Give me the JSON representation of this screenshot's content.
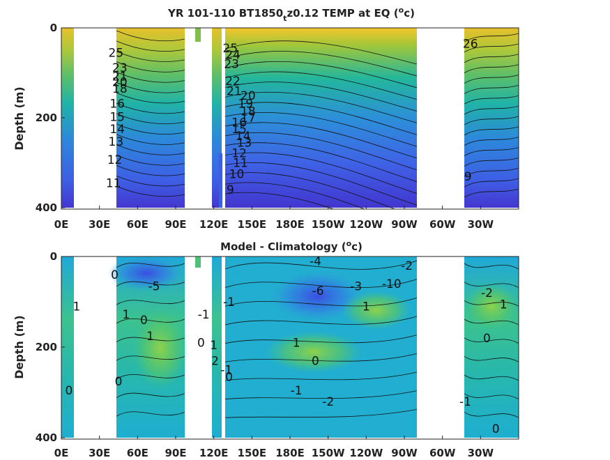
{
  "chart_data": [
    {
      "type": "heatmap",
      "title_main": "YR 101-110 BT1850",
      "title_sub": "t",
      "title_rest": "z0.12 TEMP at EQ (",
      "title_sup": "o",
      "title_end": "c)",
      "ylabel": "Depth (m)",
      "ylim": [
        400,
        0
      ],
      "yticks": [
        "0",
        "200",
        "400"
      ],
      "xticks": [
        "0E",
        "30E",
        "60E",
        "90E",
        "120E",
        "150E",
        "180E",
        "150W",
        "120W",
        "90W",
        "60W",
        "30W"
      ],
      "contour_labels": [
        {
          "text": "25",
          "lon": 43,
          "depth": 55
        },
        {
          "text": "23",
          "lon": 46,
          "depth": 88
        },
        {
          "text": "21",
          "lon": 46,
          "depth": 108
        },
        {
          "text": "20",
          "lon": 46,
          "depth": 120
        },
        {
          "text": "18",
          "lon": 46,
          "depth": 135
        },
        {
          "text": "16",
          "lon": 44,
          "depth": 168
        },
        {
          "text": "15",
          "lon": 44,
          "depth": 198
        },
        {
          "text": "14",
          "lon": 44,
          "depth": 225
        },
        {
          "text": "13",
          "lon": 43,
          "depth": 253
        },
        {
          "text": "12",
          "lon": 42,
          "depth": 293
        },
        {
          "text": "11",
          "lon": 41,
          "depth": 345
        },
        {
          "text": "25",
          "lon": 133,
          "depth": 45
        },
        {
          "text": "24",
          "lon": 135,
          "depth": 60
        },
        {
          "text": "23",
          "lon": 134,
          "depth": 80
        },
        {
          "text": "22",
          "lon": 135,
          "depth": 118
        },
        {
          "text": "21",
          "lon": 136,
          "depth": 140
        },
        {
          "text": "20",
          "lon": 147,
          "depth": 150
        },
        {
          "text": "19",
          "lon": 145,
          "depth": 168
        },
        {
          "text": "18",
          "lon": 147,
          "depth": 185
        },
        {
          "text": "17",
          "lon": 147,
          "depth": 200
        },
        {
          "text": "16",
          "lon": 140,
          "depth": 210
        },
        {
          "text": "15",
          "lon": 140,
          "depth": 225
        },
        {
          "text": "14",
          "lon": 143,
          "depth": 240
        },
        {
          "text": "13",
          "lon": 144,
          "depth": 255
        },
        {
          "text": "12",
          "lon": 140,
          "depth": 278
        },
        {
          "text": "11",
          "lon": 141,
          "depth": 300
        },
        {
          "text": "10",
          "lon": 138,
          "depth": 325
        },
        {
          "text": "9",
          "lon": 133,
          "depth": 360
        },
        {
          "text": "26",
          "lon": 322,
          "depth": 35
        },
        {
          "text": "9",
          "lon": 320,
          "depth": 330
        }
      ]
    },
    {
      "type": "heatmap",
      "title_main": "Model - Climatology (",
      "title_sup": "o",
      "title_end": "c)",
      "ylabel": "Depth (m)",
      "ylim": [
        400,
        0
      ],
      "yticks": [
        "0",
        "200",
        "400"
      ],
      "xticks": [
        "0E",
        "30E",
        "60E",
        "90E",
        "120E",
        "150E",
        "180E",
        "150W",
        "120W",
        "90W",
        "60W",
        "30W"
      ],
      "contour_labels": [
        {
          "text": "-4",
          "lon": 200,
          "depth": 10
        },
        {
          "text": "-6",
          "lon": 202,
          "depth": 75
        },
        {
          "text": "-5",
          "lon": 73,
          "depth": 65
        },
        {
          "text": "-3",
          "lon": 232,
          "depth": 65
        },
        {
          "text": "-10",
          "lon": 260,
          "depth": 60
        },
        {
          "text": "-2",
          "lon": 272,
          "depth": 20
        },
        {
          "text": "-2",
          "lon": 335,
          "depth": 80
        },
        {
          "text": "-1",
          "lon": 132,
          "depth": 100
        },
        {
          "text": "0",
          "lon": 42,
          "depth": 40
        },
        {
          "text": "1",
          "lon": 12,
          "depth": 110
        },
        {
          "text": "1",
          "lon": 51,
          "depth": 128
        },
        {
          "text": "0",
          "lon": 65,
          "depth": 140
        },
        {
          "text": "1",
          "lon": 70,
          "depth": 175
        },
        {
          "text": "-1",
          "lon": 112,
          "depth": 128
        },
        {
          "text": "0",
          "lon": 110,
          "depth": 190
        },
        {
          "text": "1",
          "lon": 120,
          "depth": 195
        },
        {
          "text": "2",
          "lon": 121,
          "depth": 230
        },
        {
          "text": "-1",
          "lon": 130,
          "depth": 250
        },
        {
          "text": "0",
          "lon": 132,
          "depth": 265
        },
        {
          "text": "1",
          "lon": 240,
          "depth": 110
        },
        {
          "text": "1",
          "lon": 185,
          "depth": 190
        },
        {
          "text": "0",
          "lon": 200,
          "depth": 230
        },
        {
          "text": "-1",
          "lon": 185,
          "depth": 295
        },
        {
          "text": "-2",
          "lon": 210,
          "depth": 320
        },
        {
          "text": "0",
          "lon": 45,
          "depth": 275
        },
        {
          "text": "0",
          "lon": 6,
          "depth": 295
        },
        {
          "text": "1",
          "lon": 348,
          "depth": 105
        },
        {
          "text": "0",
          "lon": 335,
          "depth": 180
        },
        {
          "text": "0",
          "lon": 342,
          "depth": 380
        },
        {
          "text": "-1",
          "lon": 318,
          "depth": 320
        }
      ]
    }
  ]
}
